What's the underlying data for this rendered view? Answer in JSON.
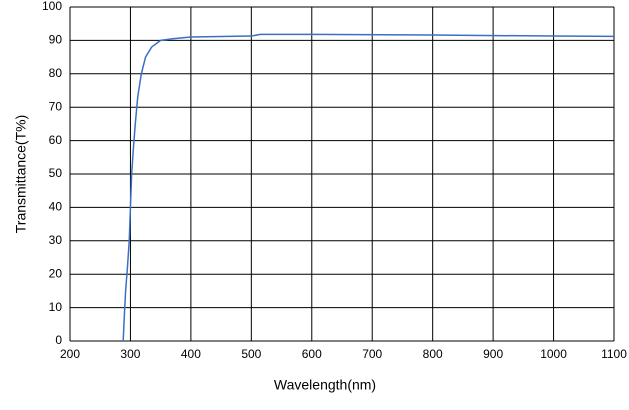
{
  "chart_data": {
    "type": "line",
    "xlabel": "Wavelength(nm)",
    "ylabel": "Transmittance(T%)",
    "x": [
      288,
      290,
      292,
      295,
      298,
      300,
      302,
      305,
      308,
      312,
      318,
      325,
      335,
      350,
      370,
      400,
      500,
      515,
      600,
      800,
      1000,
      1100
    ],
    "series": [
      {
        "color": "#3b6fc6",
        "values": [
          0,
          8,
          15,
          22,
          30,
          40,
          50,
          58,
          65,
          73,
          80,
          85,
          88,
          90,
          90.5,
          91,
          91.3,
          91.8,
          91.8,
          91.6,
          91.3,
          91.2
        ]
      }
    ],
    "xlim": [
      200,
      1100
    ],
    "xticks": [
      200,
      300,
      400,
      500,
      600,
      700,
      800,
      900,
      1000,
      1100
    ],
    "ylim": [
      0,
      100
    ],
    "yticks": [
      0,
      10,
      20,
      30,
      40,
      50,
      60,
      70,
      80,
      90,
      100
    ],
    "grid": true
  }
}
